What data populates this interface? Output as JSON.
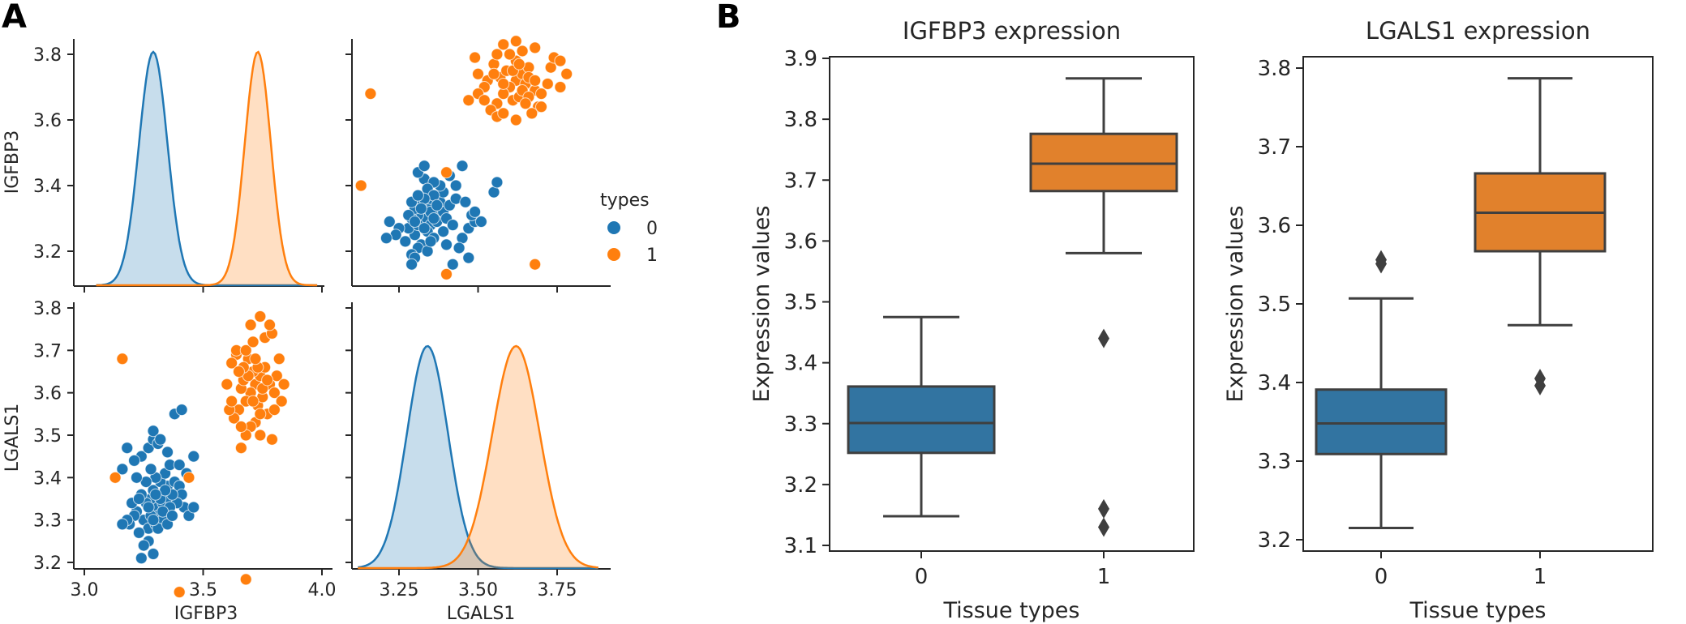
{
  "figure": {
    "panel_a_label": "A",
    "panel_b_label": "B"
  },
  "colors": {
    "type0": "#1f77b4",
    "type1": "#ff7f0e",
    "box0": "#3274a1",
    "box1": "#e1812c",
    "box_line": "#3f3f3f",
    "axis": "#262626"
  },
  "chart_data": [
    {
      "id": "pairplot",
      "type": "scatter",
      "title": "",
      "legend": {
        "title": "types",
        "entries": [
          "0",
          "1"
        ],
        "placement": "right"
      },
      "variables": [
        "IGFBP3",
        "LGALS1"
      ],
      "axes": {
        "IGFBP3": {
          "range": [
            2.95,
            4.03
          ],
          "ticks": [
            3.0,
            3.5,
            4.0
          ],
          "tick_labels": [
            "3.0",
            "3.5",
            "4.0"
          ]
        },
        "IGFBP3_y": {
          "range": [
            3.1,
            3.88
          ],
          "ticks": [
            3.2,
            3.4,
            3.6,
            3.8
          ],
          "tick_labels": [
            "3.2",
            "3.4",
            "3.6",
            "3.8"
          ]
        },
        "LGALS1": {
          "range": [
            3.1,
            3.95
          ],
          "ticks": [
            3.25,
            3.5,
            3.75
          ],
          "tick_labels": [
            "3.25",
            "3.50",
            "3.75"
          ]
        },
        "LGALS1_y": {
          "range": [
            3.19,
            3.81
          ],
          "ticks": [
            3.2,
            3.3,
            3.4,
            3.5,
            3.6,
            3.7,
            3.8
          ],
          "tick_labels": [
            "3.2",
            "3.3",
            "3.4",
            "3.5",
            "3.6",
            "3.7",
            "3.8"
          ]
        }
      },
      "kde": {
        "IGFBP3": [
          {
            "name": "0",
            "mean": 3.29,
            "sd": 0.06
          },
          {
            "name": "1",
            "mean": 3.73,
            "sd": 0.055
          }
        ],
        "LGALS1": [
          {
            "name": "0",
            "mean": 3.34,
            "sd": 0.065
          },
          {
            "name": "1",
            "mean": 3.62,
            "sd": 0.075
          }
        ]
      },
      "series": [
        {
          "name": "0",
          "points": [
            [
              3.3,
              3.33
            ],
            [
              3.28,
              3.35
            ],
            [
              3.32,
              3.36
            ],
            [
              3.25,
              3.3
            ],
            [
              3.35,
              3.38
            ],
            [
              3.22,
              3.32
            ],
            [
              3.27,
              3.28
            ],
            [
              3.31,
              3.31
            ],
            [
              3.33,
              3.34
            ],
            [
              3.29,
              3.37
            ],
            [
              3.26,
              3.34
            ],
            [
              3.34,
              3.32
            ],
            [
              3.36,
              3.35
            ],
            [
              3.24,
              3.36
            ],
            [
              3.3,
              3.29
            ],
            [
              3.28,
              3.31
            ],
            [
              3.38,
              3.39
            ],
            [
              3.4,
              3.38
            ],
            [
              3.21,
              3.31
            ],
            [
              3.19,
              3.29
            ],
            [
              3.23,
              3.27
            ],
            [
              3.27,
              3.25
            ],
            [
              3.29,
              3.22
            ],
            [
              3.25,
              3.24
            ],
            [
              3.42,
              3.33
            ],
            [
              3.44,
              3.31
            ],
            [
              3.46,
              3.33
            ],
            [
              3.41,
              3.36
            ],
            [
              3.39,
              3.34
            ],
            [
              3.37,
              3.36
            ],
            [
              3.33,
              3.3
            ],
            [
              3.31,
              3.28
            ],
            [
              3.35,
              3.29
            ],
            [
              3.2,
              3.34
            ],
            [
              3.18,
              3.3
            ],
            [
              3.16,
              3.29
            ],
            [
              3.32,
              3.39
            ],
            [
              3.34,
              3.41
            ],
            [
              3.3,
              3.4
            ],
            [
              3.26,
              3.39
            ],
            [
              3.22,
              3.4
            ],
            [
              3.28,
              3.42
            ],
            [
              3.36,
              3.43
            ],
            [
              3.4,
              3.43
            ],
            [
              3.43,
              3.41
            ],
            [
              3.24,
              3.45
            ],
            [
              3.27,
              3.47
            ],
            [
              3.29,
              3.49
            ],
            [
              3.31,
              3.48
            ],
            [
              3.35,
              3.46
            ],
            [
              3.38,
              3.55
            ],
            [
              3.41,
              3.56
            ],
            [
              3.16,
              3.42
            ],
            [
              3.18,
              3.47
            ],
            [
              3.21,
              3.44
            ],
            [
              3.29,
              3.51
            ],
            [
              3.32,
              3.49
            ],
            [
              3.46,
              3.45
            ],
            [
              3.24,
              3.21
            ],
            [
              3.32,
              3.35
            ],
            [
              3.34,
              3.37
            ],
            [
              3.36,
              3.33
            ],
            [
              3.27,
              3.33
            ],
            [
              3.3,
              3.36
            ],
            [
              3.23,
              3.35
            ],
            [
              3.33,
              3.32
            ],
            [
              3.29,
              3.3
            ],
            [
              3.37,
              3.31
            ]
          ]
        },
        {
          "name": "1",
          "points": [
            [
              3.72,
              3.62
            ],
            [
              3.7,
              3.6
            ],
            [
              3.74,
              3.64
            ],
            [
              3.68,
              3.58
            ],
            [
              3.76,
              3.66
            ],
            [
              3.66,
              3.61
            ],
            [
              3.73,
              3.57
            ],
            [
              3.71,
              3.65
            ],
            [
              3.78,
              3.62
            ],
            [
              3.69,
              3.68
            ],
            [
              3.75,
              3.59
            ],
            [
              3.67,
              3.63
            ],
            [
              3.8,
              3.6
            ],
            [
              3.64,
              3.69
            ],
            [
              3.65,
              3.56
            ],
            [
              3.77,
              3.55
            ],
            [
              3.72,
              3.53
            ],
            [
              3.7,
              3.52
            ],
            [
              3.74,
              3.5
            ],
            [
              3.79,
              3.49
            ],
            [
              3.68,
              3.5
            ],
            [
              3.66,
              3.47
            ],
            [
              3.63,
              3.54
            ],
            [
              3.61,
              3.56
            ],
            [
              3.6,
              3.62
            ],
            [
              3.62,
              3.67
            ],
            [
              3.64,
              3.7
            ],
            [
              3.68,
              3.7
            ],
            [
              3.71,
              3.72
            ],
            [
              3.76,
              3.73
            ],
            [
              3.79,
              3.74
            ],
            [
              3.82,
              3.68
            ],
            [
              3.81,
              3.64
            ],
            [
              3.83,
              3.58
            ],
            [
              3.78,
              3.76
            ],
            [
              3.74,
              3.78
            ],
            [
              3.7,
              3.76
            ],
            [
              3.62,
              3.58
            ],
            [
              3.73,
              3.66
            ],
            [
              3.69,
              3.64
            ],
            [
              3.75,
              3.61
            ],
            [
              3.71,
              3.58
            ],
            [
              3.67,
              3.66
            ],
            [
              3.77,
              3.63
            ],
            [
              3.65,
              3.65
            ],
            [
              3.8,
              3.56
            ],
            [
              3.72,
              3.68
            ],
            [
              3.84,
              3.62
            ],
            [
              3.66,
              3.52
            ],
            [
              3.74,
              3.55
            ],
            [
              3.13,
              3.4
            ],
            [
              3.44,
              3.4
            ],
            [
              3.4,
              3.13
            ],
            [
              3.16,
              3.68
            ],
            [
              3.68,
              3.16
            ]
          ]
        }
      ]
    },
    {
      "id": "box-igfbp3",
      "type": "box",
      "title": "IGFBP3 expression",
      "xlabel": "Tissue types",
      "ylabel": "Expression values",
      "categories": [
        "0",
        "1"
      ],
      "ylim": [
        3.09,
        3.905
      ],
      "yticks": [
        3.1,
        3.2,
        3.3,
        3.4,
        3.5,
        3.6,
        3.7,
        3.8,
        3.9
      ],
      "ytick_labels": [
        "3.1",
        "3.2",
        "3.3",
        "3.4",
        "3.5",
        "3.6",
        "3.7",
        "3.8",
        "3.9"
      ],
      "series": [
        {
          "name": "0",
          "whisker_low": 3.148,
          "q1": 3.252,
          "median": 3.301,
          "q3": 3.361,
          "whisker_high": 3.475,
          "outliers": []
        },
        {
          "name": "1",
          "whisker_low": 3.58,
          "q1": 3.682,
          "median": 3.727,
          "q3": 3.776,
          "whisker_high": 3.867,
          "outliers": [
            3.44,
            3.16,
            3.13
          ]
        }
      ]
    },
    {
      "id": "box-lgals1",
      "type": "box",
      "title": "LGALS1 expression",
      "xlabel": "Tissue types",
      "ylabel": "Expression values",
      "categories": [
        "0",
        "1"
      ],
      "ylim": [
        3.185,
        3.815
      ],
      "yticks": [
        3.2,
        3.3,
        3.4,
        3.5,
        3.6,
        3.7,
        3.8
      ],
      "ytick_labels": [
        "3.2",
        "3.3",
        "3.4",
        "3.5",
        "3.6",
        "3.7",
        "3.8"
      ],
      "series": [
        {
          "name": "0",
          "whisker_low": 3.215,
          "q1": 3.309,
          "median": 3.348,
          "q3": 3.391,
          "whisker_high": 3.507,
          "outliers": [
            3.556,
            3.551
          ]
        },
        {
          "name": "1",
          "whisker_low": 3.473,
          "q1": 3.567,
          "median": 3.616,
          "q3": 3.666,
          "whisker_high": 3.787,
          "outliers": [
            3.405,
            3.396
          ]
        }
      ]
    }
  ]
}
